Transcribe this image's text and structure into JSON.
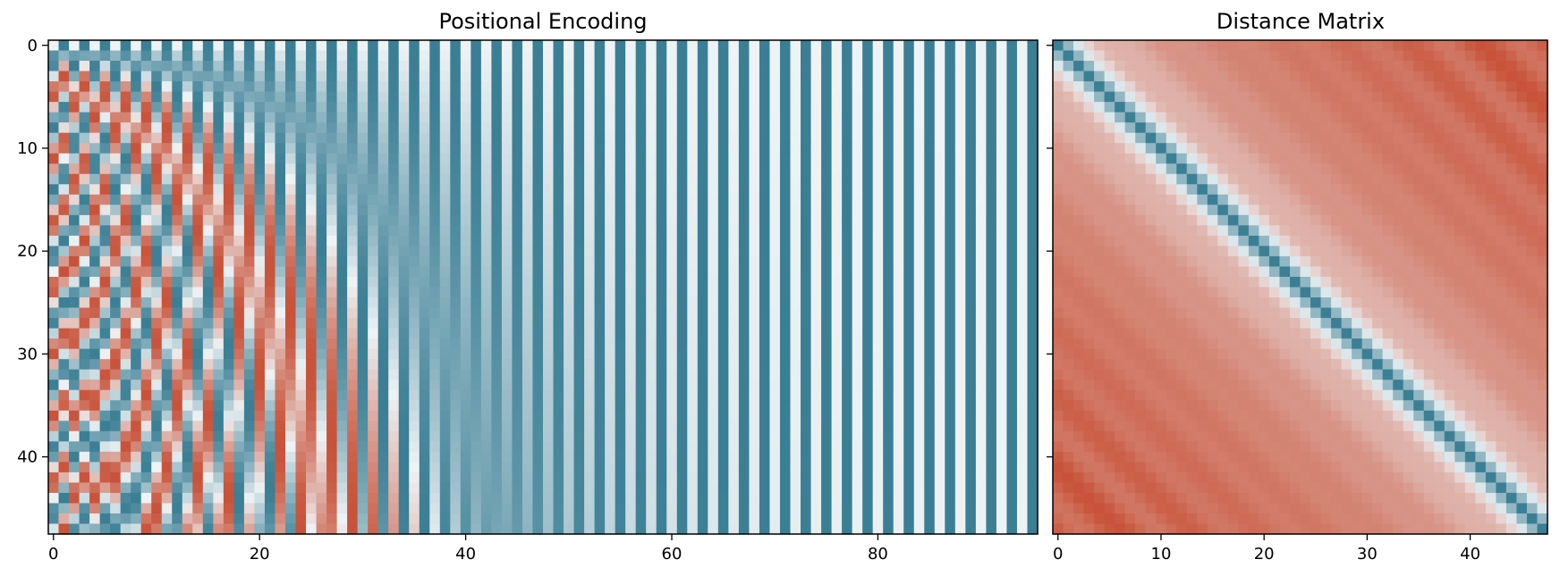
{
  "figure": {
    "background": "#ffffff"
  },
  "colormap": {
    "low": "#3b7f95",
    "mid": "#eef3f5",
    "high": "#c8533a"
  },
  "chart_data": [
    {
      "type": "heatmap",
      "title": "Positional Encoding",
      "n_rows": 48,
      "n_cols": 96,
      "model": "sinusoidal positional encoding: even column 2i = sin(pos / 10000^(2i/96)), odd column 2i+1 = cos(pos / 10000^(2i/96)), pos = row index 0..47",
      "value_range": [
        -1,
        1
      ],
      "x_ticks": [
        0,
        20,
        40,
        60,
        80
      ],
      "y_ticks": [
        0,
        10,
        20,
        30,
        40
      ],
      "xlabel": "",
      "ylabel": "",
      "grid": false
    },
    {
      "type": "heatmap",
      "title": "Distance Matrix",
      "n_rows": 48,
      "n_cols": 48,
      "model": "pairwise Euclidean distance between the 48 positional-encoding rows; zero along the diagonal, larger away from it",
      "x_ticks": [
        0,
        10,
        20,
        30,
        40
      ],
      "y_ticks": [
        0,
        10,
        20,
        30,
        40
      ],
      "shares_y_axis_with": "Positional Encoding",
      "xlabel": "",
      "ylabel": "",
      "grid": false
    }
  ]
}
